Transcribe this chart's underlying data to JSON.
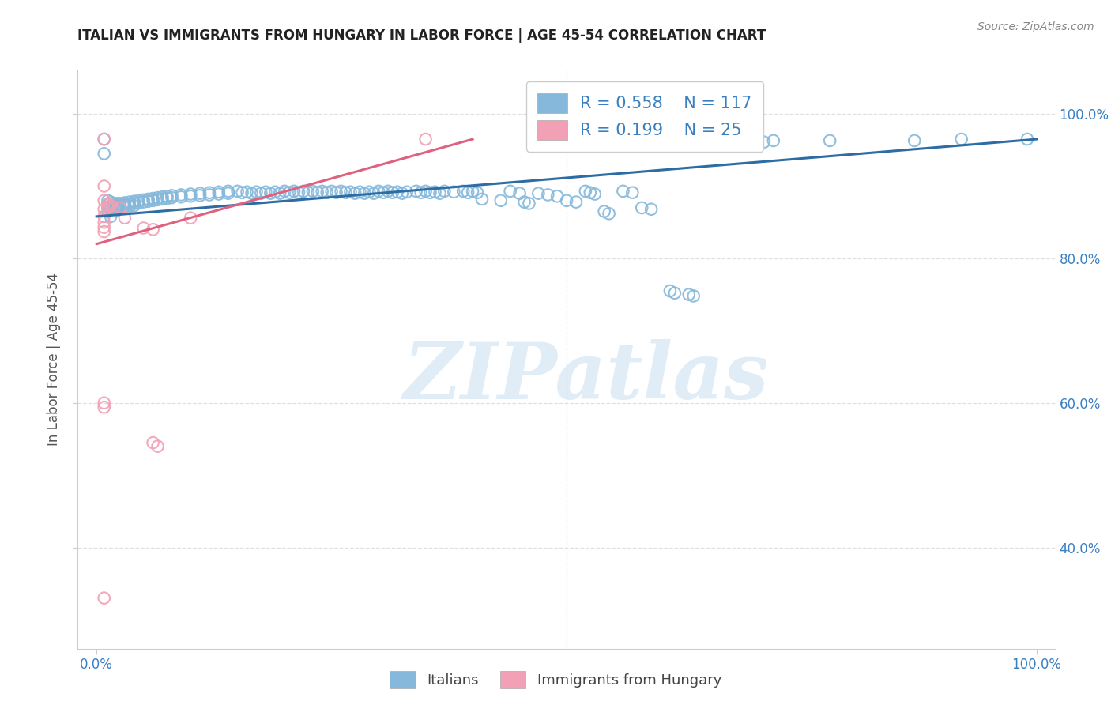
{
  "title": "ITALIAN VS IMMIGRANTS FROM HUNGARY IN LABOR FORCE | AGE 45-54 CORRELATION CHART",
  "source": "Source: ZipAtlas.com",
  "ylabel": "In Labor Force | Age 45-54",
  "ytick_labels": [
    "100.0%",
    "80.0%",
    "60.0%",
    "40.0%"
  ],
  "ytick_positions": [
    1.0,
    0.8,
    0.6,
    0.4
  ],
  "xtick_left": "0.0%",
  "xtick_right": "100.0%",
  "xlim": [
    -0.02,
    1.02
  ],
  "ylim": [
    0.26,
    1.06
  ],
  "blue_R": 0.558,
  "blue_N": 117,
  "pink_R": 0.199,
  "pink_N": 25,
  "blue_color": "#85b8db",
  "pink_color": "#f2a0b5",
  "trendline_blue_color": "#2e6da4",
  "trendline_pink_color": "#e06080",
  "legend_blue_label": "Italians",
  "legend_pink_label": "Immigrants from Hungary",
  "watermark_text": "ZIPatlas",
  "background_color": "#ffffff",
  "grid_color": "#d8d8d8",
  "title_color": "#222222",
  "axis_label_color": "#555555",
  "tick_color": "#3a7fc1",
  "blue_points": [
    [
      0.008,
      0.965
    ],
    [
      0.008,
      0.945
    ],
    [
      0.012,
      0.88
    ],
    [
      0.012,
      0.875
    ],
    [
      0.012,
      0.87
    ],
    [
      0.012,
      0.865
    ],
    [
      0.015,
      0.878
    ],
    [
      0.015,
      0.873
    ],
    [
      0.015,
      0.868
    ],
    [
      0.015,
      0.858
    ],
    [
      0.018,
      0.876
    ],
    [
      0.018,
      0.872
    ],
    [
      0.018,
      0.868
    ],
    [
      0.022,
      0.876
    ],
    [
      0.022,
      0.873
    ],
    [
      0.022,
      0.87
    ],
    [
      0.022,
      0.867
    ],
    [
      0.025,
      0.876
    ],
    [
      0.025,
      0.873
    ],
    [
      0.025,
      0.87
    ],
    [
      0.03,
      0.877
    ],
    [
      0.03,
      0.874
    ],
    [
      0.03,
      0.871
    ],
    [
      0.035,
      0.878
    ],
    [
      0.035,
      0.875
    ],
    [
      0.035,
      0.872
    ],
    [
      0.04,
      0.879
    ],
    [
      0.04,
      0.876
    ],
    [
      0.04,
      0.873
    ],
    [
      0.045,
      0.88
    ],
    [
      0.045,
      0.877
    ],
    [
      0.05,
      0.881
    ],
    [
      0.05,
      0.878
    ],
    [
      0.055,
      0.882
    ],
    [
      0.055,
      0.879
    ],
    [
      0.06,
      0.883
    ],
    [
      0.06,
      0.88
    ],
    [
      0.065,
      0.884
    ],
    [
      0.065,
      0.881
    ],
    [
      0.07,
      0.885
    ],
    [
      0.07,
      0.882
    ],
    [
      0.075,
      0.886
    ],
    [
      0.075,
      0.883
    ],
    [
      0.08,
      0.887
    ],
    [
      0.08,
      0.884
    ],
    [
      0.09,
      0.888
    ],
    [
      0.09,
      0.885
    ],
    [
      0.1,
      0.889
    ],
    [
      0.1,
      0.886
    ],
    [
      0.11,
      0.89
    ],
    [
      0.11,
      0.887
    ],
    [
      0.12,
      0.891
    ],
    [
      0.12,
      0.888
    ],
    [
      0.13,
      0.892
    ],
    [
      0.13,
      0.889
    ],
    [
      0.14,
      0.893
    ],
    [
      0.14,
      0.89
    ],
    [
      0.15,
      0.893
    ],
    [
      0.155,
      0.891
    ],
    [
      0.16,
      0.892
    ],
    [
      0.165,
      0.89
    ],
    [
      0.17,
      0.892
    ],
    [
      0.175,
      0.89
    ],
    [
      0.18,
      0.892
    ],
    [
      0.185,
      0.89
    ],
    [
      0.19,
      0.892
    ],
    [
      0.195,
      0.89
    ],
    [
      0.2,
      0.893
    ],
    [
      0.205,
      0.891
    ],
    [
      0.21,
      0.893
    ],
    [
      0.215,
      0.891
    ],
    [
      0.22,
      0.893
    ],
    [
      0.225,
      0.891
    ],
    [
      0.23,
      0.893
    ],
    [
      0.235,
      0.891
    ],
    [
      0.24,
      0.893
    ],
    [
      0.245,
      0.891
    ],
    [
      0.25,
      0.893
    ],
    [
      0.255,
      0.891
    ],
    [
      0.26,
      0.893
    ],
    [
      0.265,
      0.891
    ],
    [
      0.27,
      0.892
    ],
    [
      0.275,
      0.89
    ],
    [
      0.28,
      0.892
    ],
    [
      0.285,
      0.89
    ],
    [
      0.29,
      0.892
    ],
    [
      0.295,
      0.89
    ],
    [
      0.3,
      0.893
    ],
    [
      0.305,
      0.891
    ],
    [
      0.31,
      0.893
    ],
    [
      0.315,
      0.891
    ],
    [
      0.32,
      0.892
    ],
    [
      0.325,
      0.89
    ],
    [
      0.33,
      0.892
    ],
    [
      0.34,
      0.893
    ],
    [
      0.345,
      0.891
    ],
    [
      0.35,
      0.893
    ],
    [
      0.355,
      0.891
    ],
    [
      0.36,
      0.892
    ],
    [
      0.365,
      0.89
    ],
    [
      0.37,
      0.893
    ],
    [
      0.38,
      0.892
    ],
    [
      0.39,
      0.893
    ],
    [
      0.395,
      0.891
    ],
    [
      0.4,
      0.893
    ],
    [
      0.405,
      0.891
    ],
    [
      0.41,
      0.882
    ],
    [
      0.43,
      0.88
    ],
    [
      0.44,
      0.893
    ],
    [
      0.45,
      0.89
    ],
    [
      0.455,
      0.878
    ],
    [
      0.46,
      0.876
    ],
    [
      0.47,
      0.89
    ],
    [
      0.48,
      0.888
    ],
    [
      0.49,
      0.886
    ],
    [
      0.5,
      0.88
    ],
    [
      0.51,
      0.878
    ],
    [
      0.52,
      0.893
    ],
    [
      0.525,
      0.891
    ],
    [
      0.53,
      0.889
    ],
    [
      0.54,
      0.865
    ],
    [
      0.545,
      0.862
    ],
    [
      0.56,
      0.893
    ],
    [
      0.57,
      0.891
    ],
    [
      0.58,
      0.87
    ],
    [
      0.59,
      0.868
    ],
    [
      0.61,
      0.755
    ],
    [
      0.615,
      0.752
    ],
    [
      0.63,
      0.75
    ],
    [
      0.635,
      0.748
    ],
    [
      0.65,
      0.965
    ],
    [
      0.66,
      0.963
    ],
    [
      0.67,
      0.961
    ],
    [
      0.7,
      0.963
    ],
    [
      0.71,
      0.961
    ],
    [
      0.72,
      0.963
    ],
    [
      0.78,
      0.963
    ],
    [
      0.87,
      0.963
    ],
    [
      0.92,
      0.965
    ],
    [
      0.99,
      0.965
    ]
  ],
  "pink_points": [
    [
      0.008,
      0.965
    ],
    [
      0.008,
      0.9
    ],
    [
      0.008,
      0.88
    ],
    [
      0.008,
      0.868
    ],
    [
      0.008,
      0.858
    ],
    [
      0.008,
      0.85
    ],
    [
      0.008,
      0.843
    ],
    [
      0.008,
      0.837
    ],
    [
      0.012,
      0.875
    ],
    [
      0.012,
      0.87
    ],
    [
      0.015,
      0.873
    ],
    [
      0.018,
      0.87
    ],
    [
      0.025,
      0.87
    ],
    [
      0.03,
      0.856
    ],
    [
      0.05,
      0.842
    ],
    [
      0.06,
      0.84
    ],
    [
      0.1,
      0.856
    ],
    [
      0.35,
      0.965
    ],
    [
      0.008,
      0.6
    ],
    [
      0.008,
      0.594
    ],
    [
      0.06,
      0.545
    ],
    [
      0.065,
      0.54
    ],
    [
      0.008,
      0.33
    ]
  ],
  "blue_trendline": [
    [
      0.0,
      0.858
    ],
    [
      1.0,
      0.965
    ]
  ],
  "pink_trendline": [
    [
      0.0,
      0.82
    ],
    [
      0.4,
      0.965
    ]
  ]
}
